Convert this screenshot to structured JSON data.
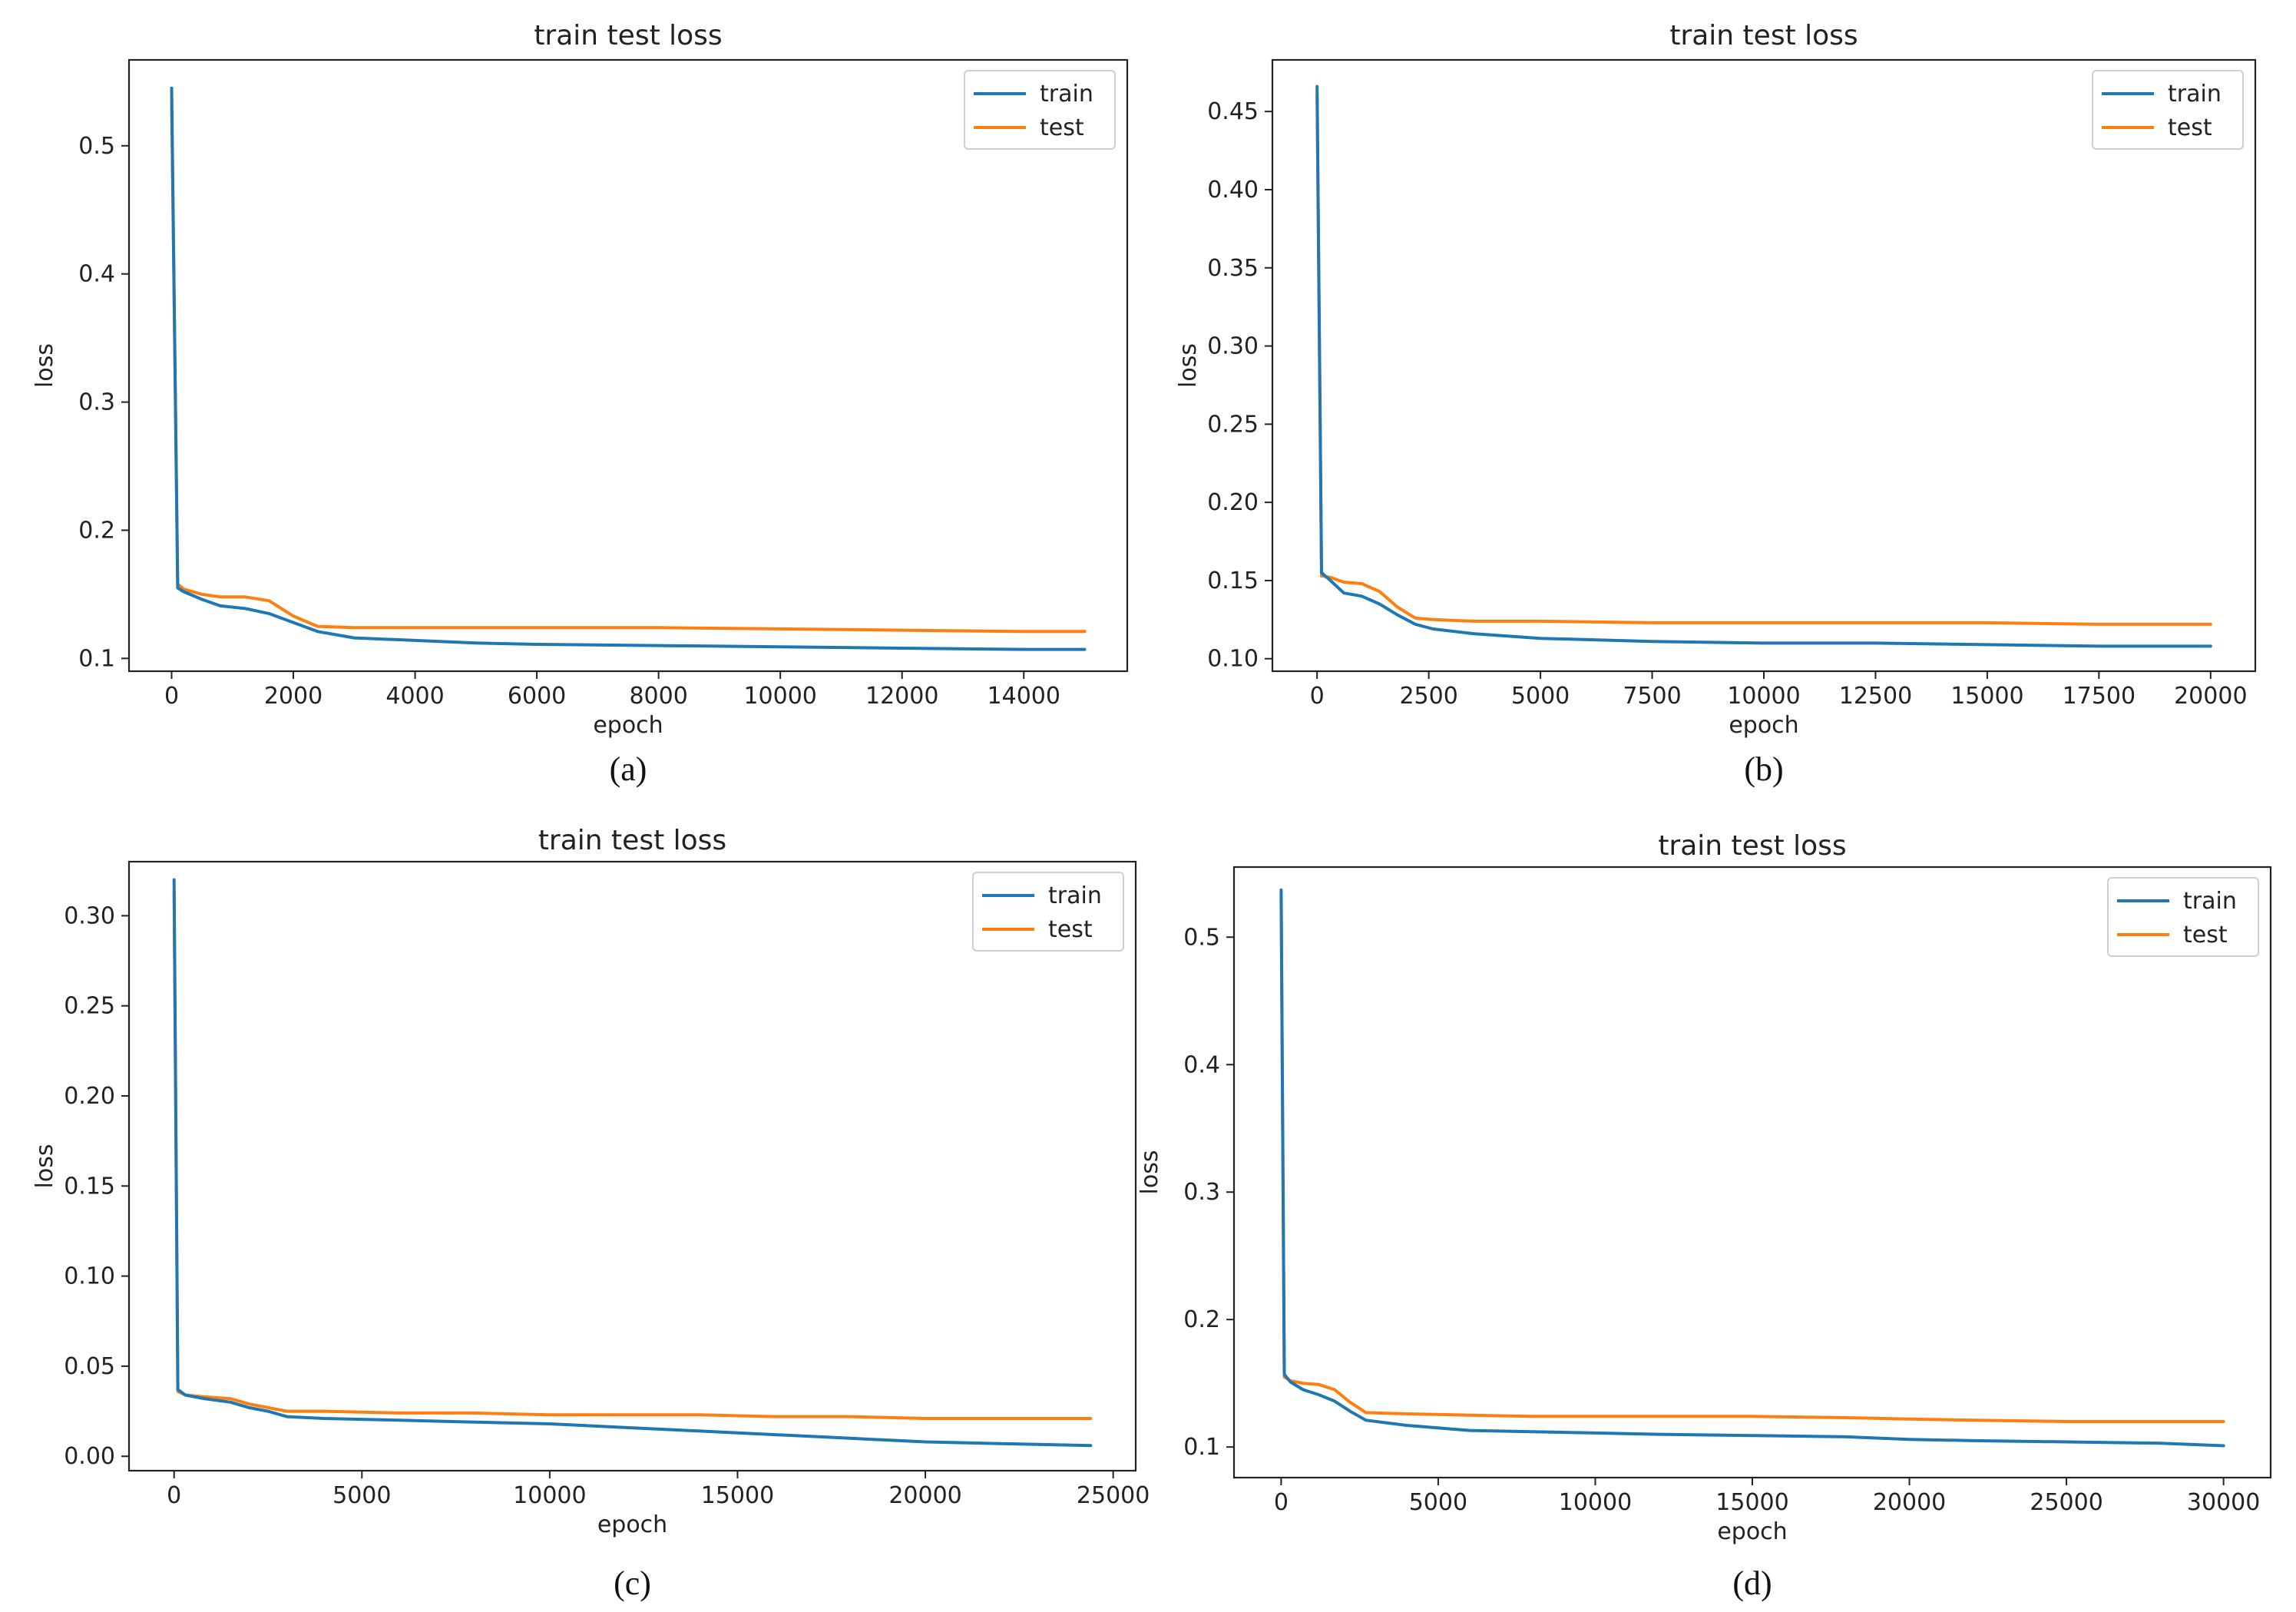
{
  "chart_data": [
    {
      "panel": "(a)",
      "type": "line",
      "title": "train test loss",
      "xlabel": "epoch",
      "ylabel": "loss",
      "xlim": [
        -700,
        15700
      ],
      "ylim": [
        0.09,
        0.567
      ],
      "xticks": [
        0,
        2000,
        4000,
        6000,
        8000,
        10000,
        12000,
        14000
      ],
      "yticks": [
        0.1,
        0.2,
        0.3,
        0.4,
        0.5
      ],
      "ytick_labels": [
        "0.1",
        "0.2",
        "0.3",
        "0.4",
        "0.5"
      ],
      "legend": "top-right",
      "series": [
        {
          "name": "train",
          "color": "#1f77b4",
          "x": [
            0,
            100,
            200,
            500,
            800,
            1200,
            1600,
            2000,
            2400,
            3000,
            4000,
            5000,
            6000,
            8000,
            10000,
            12000,
            14000,
            15000
          ],
          "y": [
            0.545,
            0.155,
            0.152,
            0.146,
            0.141,
            0.139,
            0.135,
            0.128,
            0.121,
            0.116,
            0.114,
            0.112,
            0.111,
            0.11,
            0.109,
            0.108,
            0.107,
            0.107
          ]
        },
        {
          "name": "test",
          "color": "#ff7f0e",
          "x": [
            0,
            100,
            200,
            500,
            800,
            1200,
            1600,
            2000,
            2400,
            3000,
            4000,
            5000,
            6000,
            8000,
            10000,
            12000,
            14000,
            15000
          ],
          "y": [
            0.537,
            0.158,
            0.154,
            0.15,
            0.148,
            0.148,
            0.145,
            0.133,
            0.125,
            0.124,
            0.124,
            0.124,
            0.124,
            0.124,
            0.123,
            0.122,
            0.121,
            0.121
          ]
        }
      ]
    },
    {
      "panel": "(b)",
      "type": "line",
      "title": "train test loss",
      "xlabel": "epoch",
      "ylabel": "loss",
      "xlim": [
        -1000,
        21000
      ],
      "ylim": [
        0.092,
        0.483
      ],
      "xticks": [
        0,
        2500,
        5000,
        7500,
        10000,
        12500,
        15000,
        17500,
        20000
      ],
      "yticks": [
        0.1,
        0.15,
        0.2,
        0.25,
        0.3,
        0.35,
        0.4,
        0.45
      ],
      "ytick_labels": [
        "0.10",
        "0.15",
        "0.20",
        "0.25",
        "0.30",
        "0.35",
        "0.40",
        "0.45"
      ],
      "legend": "top-right",
      "series": [
        {
          "name": "train",
          "color": "#1f77b4",
          "x": [
            0,
            100,
            300,
            600,
            1000,
            1400,
            1800,
            2200,
            2600,
            3500,
            5000,
            7500,
            10000,
            12500,
            15000,
            17500,
            20000
          ],
          "y": [
            0.466,
            0.155,
            0.15,
            0.142,
            0.14,
            0.135,
            0.128,
            0.122,
            0.119,
            0.116,
            0.113,
            0.111,
            0.11,
            0.11,
            0.109,
            0.108,
            0.108
          ]
        },
        {
          "name": "test",
          "color": "#ff7f0e",
          "x": [
            0,
            100,
            300,
            600,
            1000,
            1400,
            1800,
            2200,
            2600,
            3500,
            5000,
            7500,
            10000,
            12500,
            15000,
            17500,
            20000
          ],
          "y": [
            0.46,
            0.153,
            0.152,
            0.149,
            0.148,
            0.143,
            0.133,
            0.126,
            0.125,
            0.124,
            0.124,
            0.123,
            0.123,
            0.123,
            0.123,
            0.122,
            0.122
          ]
        }
      ]
    },
    {
      "panel": "(c)",
      "type": "line",
      "title": "train test loss",
      "xlabel": "epoch",
      "ylabel": "loss",
      "xlim": [
        -1200,
        25600
      ],
      "ylim": [
        -0.008,
        0.33
      ],
      "xticks": [
        0,
        5000,
        10000,
        15000,
        20000,
        25000
      ],
      "yticks": [
        0.0,
        0.05,
        0.1,
        0.15,
        0.2,
        0.25,
        0.3
      ],
      "ytick_labels": [
        "0.00",
        "0.05",
        "0.10",
        "0.15",
        "0.20",
        "0.25",
        "0.30"
      ],
      "legend": "top-right",
      "series": [
        {
          "name": "train",
          "color": "#1f77b4",
          "x": [
            0,
            100,
            300,
            800,
            1500,
            2000,
            2500,
            3000,
            4000,
            6000,
            8000,
            10000,
            12000,
            14000,
            16000,
            18000,
            20000,
            22000,
            24400
          ],
          "y": [
            0.32,
            0.037,
            0.034,
            0.032,
            0.03,
            0.027,
            0.025,
            0.022,
            0.021,
            0.02,
            0.019,
            0.018,
            0.016,
            0.014,
            0.012,
            0.01,
            0.008,
            0.007,
            0.006
          ]
        },
        {
          "name": "test",
          "color": "#ff7f0e",
          "x": [
            0,
            100,
            300,
            800,
            1500,
            2000,
            2500,
            3000,
            4000,
            6000,
            8000,
            10000,
            12000,
            14000,
            16000,
            18000,
            20000,
            22000,
            24400
          ],
          "y": [
            0.313,
            0.036,
            0.034,
            0.033,
            0.032,
            0.029,
            0.027,
            0.025,
            0.025,
            0.024,
            0.024,
            0.023,
            0.023,
            0.023,
            0.022,
            0.022,
            0.021,
            0.021,
            0.021
          ]
        }
      ]
    },
    {
      "panel": "(d)",
      "type": "line",
      "title": "train test loss",
      "xlabel": "epoch",
      "ylabel": "loss",
      "xlim": [
        -1500,
        31500
      ],
      "ylim": [
        0.076,
        0.555
      ],
      "xticks": [
        0,
        5000,
        10000,
        15000,
        20000,
        25000,
        30000
      ],
      "yticks": [
        0.1,
        0.2,
        0.3,
        0.4,
        0.5
      ],
      "ytick_labels": [
        "0.1",
        "0.2",
        "0.3",
        "0.4",
        "0.5"
      ],
      "legend": "top-right",
      "series": [
        {
          "name": "train",
          "color": "#1f77b4",
          "x": [
            0,
            100,
            300,
            700,
            1200,
            1700,
            2200,
            2700,
            4000,
            6000,
            8000,
            10000,
            12000,
            15000,
            18000,
            20000,
            22000,
            25000,
            28000,
            30000
          ],
          "y": [
            0.537,
            0.157,
            0.151,
            0.145,
            0.141,
            0.136,
            0.128,
            0.121,
            0.117,
            0.113,
            0.112,
            0.111,
            0.11,
            0.109,
            0.108,
            0.106,
            0.105,
            0.104,
            0.103,
            0.101
          ]
        },
        {
          "name": "test",
          "color": "#ff7f0e",
          "x": [
            0,
            100,
            300,
            700,
            1200,
            1700,
            2200,
            2700,
            4000,
            6000,
            8000,
            10000,
            12000,
            15000,
            18000,
            20000,
            22000,
            25000,
            28000,
            30000
          ],
          "y": [
            0.53,
            0.155,
            0.152,
            0.15,
            0.149,
            0.145,
            0.135,
            0.127,
            0.126,
            0.125,
            0.124,
            0.124,
            0.124,
            0.124,
            0.123,
            0.122,
            0.121,
            0.12,
            0.12,
            0.12
          ]
        }
      ]
    }
  ]
}
